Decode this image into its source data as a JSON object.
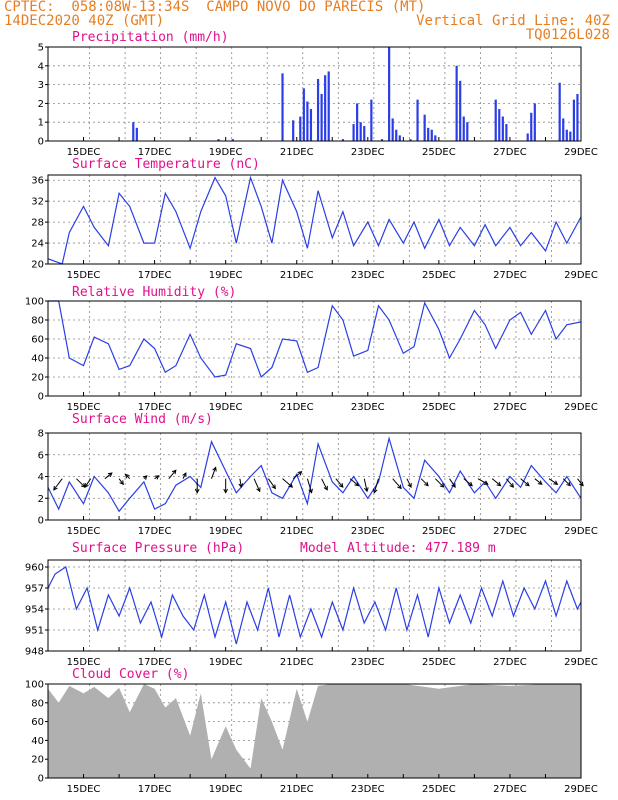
{
  "header": {
    "line1": "CPTEC:  058:08W-13:34S  CAMPO NOVO DO PARECIS (MT)",
    "line2_left": "14DEC2020 40Z (GMT)",
    "line2_right": "Vertical Grid Line: 40Z",
    "line3_right": "TQ0126L028"
  },
  "x_tick_labels": [
    "15DEC",
    "17DEC",
    "19DEC",
    "21DEC",
    "23DEC",
    "25DEC",
    "27DEC",
    "29DEC"
  ],
  "colors": {
    "series": "#2b3ee6",
    "cloud": "#b0b0b0",
    "wind_arrow": "#000000",
    "title": "#e0118c",
    "header": "#e67e22"
  },
  "chart_data": [
    {
      "type": "bar",
      "title": "Precipitation (mm/h)",
      "ylim": [
        0,
        5
      ],
      "yticks": [
        0,
        1,
        2,
        3,
        4,
        5
      ],
      "x_range_days": [
        14,
        29
      ],
      "x": [
        16.4,
        16.5,
        18.8,
        19.2,
        20.6,
        20.9,
        21.1,
        21.2,
        21.3,
        21.4,
        21.6,
        21.7,
        21.8,
        21.9,
        22.3,
        22.6,
        22.7,
        22.8,
        22.9,
        23.1,
        23.4,
        23.6,
        23.7,
        23.8,
        23.9,
        24.2,
        24.4,
        24.6,
        24.7,
        24.8,
        24.9,
        25.5,
        25.6,
        25.7,
        25.8,
        26.6,
        26.7,
        26.8,
        26.9,
        27.5,
        27.6,
        27.7,
        28.4,
        28.5,
        28.6,
        28.7,
        28.8,
        28.9
      ],
      "values": [
        1.0,
        0.7,
        0.1,
        0.1,
        3.6,
        1.1,
        1.3,
        2.8,
        2.1,
        1.7,
        3.3,
        2.5,
        3.5,
        3.7,
        0.1,
        0.9,
        2.0,
        1.0,
        0.8,
        2.2,
        0.1,
        5.0,
        1.2,
        0.6,
        0.3,
        0.1,
        2.2,
        1.4,
        0.7,
        0.6,
        0.3,
        4.0,
        3.2,
        1.3,
        1.0,
        2.2,
        1.7,
        1.3,
        0.9,
        0.4,
        1.5,
        2.0,
        3.1,
        1.2,
        0.6,
        0.5,
        2.2,
        2.5
      ]
    },
    {
      "type": "line",
      "title": "Surface Temperature (nC)",
      "ylim": [
        20,
        37
      ],
      "yticks": [
        20,
        24,
        28,
        32,
        36
      ],
      "x": [
        14.0,
        14.4,
        14.6,
        15.0,
        15.3,
        15.7,
        16.0,
        16.3,
        16.7,
        17.0,
        17.3,
        17.6,
        18.0,
        18.3,
        18.7,
        19.0,
        19.3,
        19.7,
        20.0,
        20.3,
        20.6,
        21.0,
        21.3,
        21.6,
        22.0,
        22.3,
        22.6,
        23.0,
        23.3,
        23.6,
        24.0,
        24.3,
        24.6,
        25.0,
        25.3,
        25.6,
        26.0,
        26.3,
        26.6,
        27.0,
        27.3,
        27.6,
        28.0,
        28.3,
        28.6,
        29.0
      ],
      "values": [
        21.0,
        20.0,
        26.0,
        31.0,
        27.0,
        23.5,
        33.5,
        31.0,
        24.0,
        24.0,
        33.5,
        30.0,
        23.0,
        30.0,
        36.5,
        33.0,
        24.0,
        36.5,
        31.0,
        24.0,
        36.0,
        30.0,
        23.0,
        34.0,
        25.0,
        30.0,
        23.5,
        28.0,
        23.5,
        28.5,
        24.0,
        28.0,
        23.0,
        28.5,
        23.5,
        27.0,
        23.5,
        27.5,
        23.5,
        27.0,
        23.5,
        26.0,
        22.5,
        28.0,
        24.0,
        29.0
      ]
    },
    {
      "type": "line",
      "title": "Relative Humidity (%)",
      "ylim": [
        0,
        100
      ],
      "yticks": [
        0,
        20,
        40,
        60,
        80,
        100
      ],
      "x": [
        14.0,
        14.3,
        14.6,
        15.0,
        15.3,
        15.7,
        16.0,
        16.3,
        16.7,
        17.0,
        17.3,
        17.6,
        18.0,
        18.3,
        18.7,
        19.0,
        19.3,
        19.7,
        20.0,
        20.3,
        20.6,
        21.0,
        21.3,
        21.6,
        22.0,
        22.3,
        22.6,
        23.0,
        23.3,
        23.6,
        24.0,
        24.3,
        24.6,
        25.0,
        25.3,
        25.6,
        26.0,
        26.3,
        26.6,
        27.0,
        27.3,
        27.6,
        28.0,
        28.3,
        28.6,
        29.0
      ],
      "values": [
        100,
        100,
        40,
        32,
        62,
        55,
        28,
        32,
        60,
        50,
        25,
        32,
        65,
        40,
        20,
        22,
        55,
        50,
        20,
        30,
        60,
        58,
        25,
        30,
        95,
        80,
        42,
        48,
        95,
        80,
        45,
        52,
        98,
        70,
        40,
        60,
        90,
        75,
        50,
        80,
        88,
        65,
        90,
        60,
        75,
        78
      ]
    },
    {
      "type": "line",
      "title": "Surface Wind (m/s)",
      "ylim": [
        0,
        8
      ],
      "yticks": [
        0,
        2,
        4,
        6,
        8
      ],
      "x": [
        14.0,
        14.3,
        14.6,
        15.0,
        15.3,
        15.7,
        16.0,
        16.3,
        16.7,
        17.0,
        17.3,
        17.6,
        18.0,
        18.3,
        18.6,
        19.0,
        19.3,
        19.7,
        20.0,
        20.3,
        20.6,
        21.0,
        21.3,
        21.6,
        22.0,
        22.3,
        22.6,
        23.0,
        23.3,
        23.6,
        24.0,
        24.3,
        24.6,
        25.0,
        25.3,
        25.6,
        26.0,
        26.3,
        26.6,
        27.0,
        27.3,
        27.6,
        28.0,
        28.3,
        28.6,
        29.0
      ],
      "values": [
        3.0,
        1.0,
        3.5,
        1.5,
        4.0,
        2.5,
        0.8,
        2.0,
        3.5,
        1.0,
        1.5,
        3.2,
        4.0,
        3.0,
        7.2,
        4.5,
        2.5,
        4.0,
        5.0,
        2.5,
        2.0,
        4.2,
        1.5,
        7.0,
        3.5,
        2.5,
        4.0,
        2.0,
        3.5,
        7.5,
        3.0,
        2.0,
        5.5,
        4.0,
        2.5,
        4.5,
        2.5,
        3.5,
        2.0,
        4.0,
        3.0,
        5.0,
        3.5,
        2.5,
        4.0,
        2.0
      ]
    },
    {
      "type": "line",
      "title": "Surface Pressure (hPa)",
      "annotation": "Model Altitude: 477.189 m",
      "ylim": [
        948,
        961
      ],
      "yticks": [
        948,
        951,
        954,
        957,
        960
      ],
      "x": [
        14.0,
        14.2,
        14.5,
        14.8,
        15.1,
        15.4,
        15.7,
        16.0,
        16.3,
        16.6,
        16.9,
        17.2,
        17.5,
        17.8,
        18.1,
        18.4,
        18.7,
        19.0,
        19.3,
        19.6,
        19.9,
        20.2,
        20.5,
        20.8,
        21.1,
        21.4,
        21.7,
        22.0,
        22.3,
        22.6,
        22.9,
        23.2,
        23.5,
        23.8,
        24.1,
        24.4,
        24.7,
        25.0,
        25.3,
        25.6,
        25.9,
        26.2,
        26.5,
        26.8,
        27.1,
        27.4,
        27.7,
        28.0,
        28.3,
        28.6,
        28.9,
        29.0
      ],
      "values": [
        957,
        959,
        960,
        954,
        957,
        951,
        956,
        953,
        957,
        952,
        955,
        950,
        956,
        953,
        951,
        956,
        950,
        955,
        949,
        955,
        951,
        957,
        950,
        956,
        950,
        954,
        950,
        955,
        951,
        957,
        952,
        955,
        951,
        957,
        951,
        956,
        950,
        957,
        952,
        956,
        952,
        957,
        953,
        958,
        953,
        957,
        954,
        958,
        953,
        958,
        954,
        955
      ]
    },
    {
      "type": "area",
      "title": "Cloud Cover (%)",
      "ylim": [
        0,
        100
      ],
      "yticks": [
        0,
        20,
        40,
        60,
        80,
        100
      ],
      "x": [
        14.0,
        14.3,
        14.6,
        15.0,
        15.3,
        15.7,
        16.0,
        16.3,
        16.7,
        17.0,
        17.3,
        17.6,
        18.0,
        18.3,
        18.6,
        19.0,
        19.3,
        19.7,
        20.0,
        20.3,
        20.6,
        21.0,
        21.3,
        21.6,
        22.0,
        23.0,
        24.0,
        25.0,
        26.0,
        27.0,
        28.0,
        29.0
      ],
      "values": [
        95,
        80,
        98,
        90,
        97,
        85,
        96,
        70,
        100,
        95,
        75,
        85,
        45,
        90,
        20,
        55,
        30,
        10,
        85,
        60,
        30,
        95,
        60,
        98,
        100,
        100,
        100,
        95,
        100,
        98,
        100,
        100
      ]
    }
  ],
  "wind_arrows": {
    "x": [
      14.4,
      14.8,
      15.2,
      15.6,
      16.0,
      16.3,
      16.7,
      17.0,
      17.4,
      17.8,
      18.2,
      18.6,
      19.0,
      19.4,
      19.8,
      20.2,
      20.6,
      20.9,
      21.3,
      21.7,
      22.1,
      22.5,
      22.9,
      23.3,
      23.7,
      24.1,
      24.5,
      24.9,
      25.3,
      25.7,
      26.1,
      26.5,
      26.9,
      27.3,
      27.7,
      28.1,
      28.5,
      28.9
    ],
    "u": [
      -0.6,
      0.6,
      -0.4,
      0.5,
      0.3,
      -0.3,
      0.2,
      0.3,
      0.5,
      0.2,
      0.0,
      0.3,
      0.0,
      0.1,
      0.4,
      0.5,
      0.7,
      0.6,
      0.3,
      0.4,
      0.5,
      0.6,
      0.2,
      -0.3,
      0.6,
      0.3,
      0.5,
      0.6,
      0.4,
      0.6,
      0.7,
      0.6,
      0.5,
      0.6,
      0.5,
      0.6,
      0.5,
      0.4
    ],
    "v": [
      -0.8,
      -0.6,
      -0.6,
      0.4,
      -0.4,
      0.3,
      0.2,
      0.2,
      0.6,
      0.4,
      -1.0,
      0.8,
      -1.0,
      -0.6,
      -0.9,
      -0.7,
      -0.6,
      0.5,
      -1.0,
      -0.8,
      -0.6,
      -0.5,
      -0.9,
      -1.0,
      -0.7,
      -0.6,
      -0.5,
      -0.6,
      -0.6,
      -0.5,
      -0.4,
      -0.5,
      -0.6,
      -0.5,
      -0.4,
      -0.4,
      -0.5,
      -0.5
    ]
  }
}
